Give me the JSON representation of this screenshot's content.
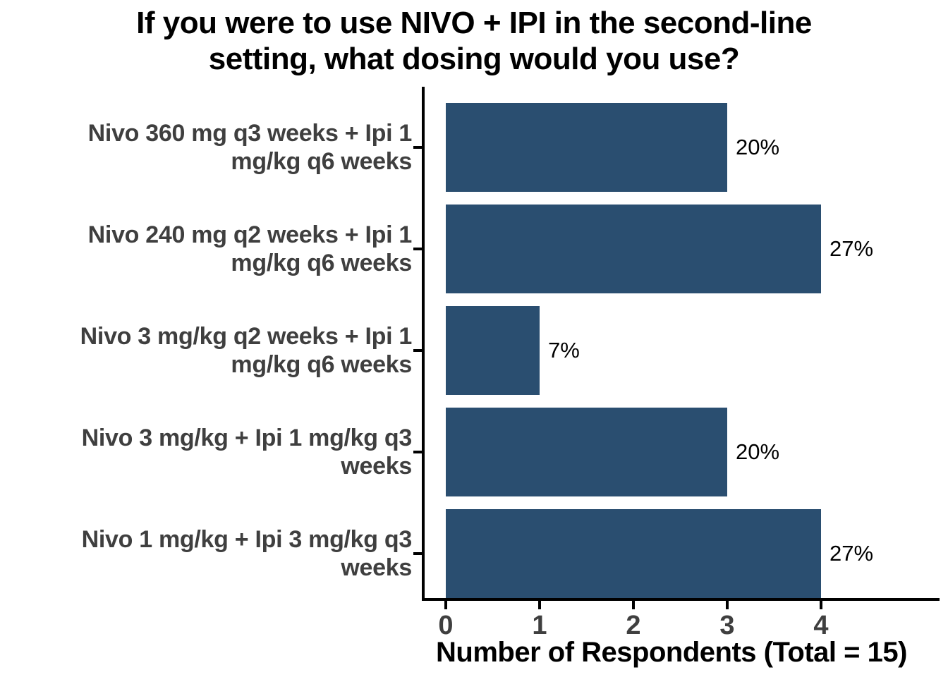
{
  "title": {
    "line1": "If you were to use NIVO + IPI in the second-line",
    "line2": "setting, what dosing would you use?",
    "full": "If you were to use NIVO + IPI in the second-line setting, what dosing would you use?"
  },
  "colors": {
    "bar_fill": "#2A4E70",
    "axis_line": "#000000",
    "axis_text_gray": "#3F3F3F",
    "title_black": "#000000",
    "background": "#FFFFFF"
  },
  "rows": [
    {
      "label_line1": "Nivo 360 mg q3 weeks + Ipi 1",
      "label_line2": "mg/kg q6 weeks",
      "value": 3,
      "pct": "20%"
    },
    {
      "label_line1": "Nivo 240 mg q2 weeks + Ipi 1",
      "label_line2": "mg/kg q6 weeks",
      "value": 4,
      "pct": "27%"
    },
    {
      "label_line1": "Nivo 3 mg/kg q2 weeks + Ipi 1",
      "label_line2": "mg/kg q6 weeks",
      "value": 1,
      "pct": "7%"
    },
    {
      "label_line1": "Nivo 3 mg/kg + Ipi 1 mg/kg q3",
      "label_line2": "weeks",
      "value": 3,
      "pct": "20%"
    },
    {
      "label_line1": "Nivo 1 mg/kg + Ipi 3 mg/kg q3",
      "label_line2": "weeks",
      "value": 4,
      "pct": "27%"
    }
  ],
  "chart_data": {
    "type": "bar",
    "orientation": "horizontal",
    "title": "If you were to use NIVO + IPI in the second-line setting, what dosing would you use?",
    "categories": [
      "Nivo 360 mg q3 weeks + Ipi 1 mg/kg q6 weeks",
      "Nivo 240 mg q2 weeks + Ipi 1 mg/kg q6 weeks",
      "Nivo 3 mg/kg q2 weeks + Ipi 1 mg/kg q6 weeks",
      "Nivo 3 mg/kg + Ipi 1 mg/kg q3 weeks",
      "Nivo 1 mg/kg + Ipi 3 mg/kg q3 weeks"
    ],
    "values": [
      3,
      4,
      1,
      3,
      4
    ],
    "value_labels": [
      "20%",
      "27%",
      "7%",
      "20%",
      "27%"
    ],
    "total_respondents": 15,
    "xlabel": "Number of Respondents (Total = 15)",
    "ylabel": "",
    "x_ticks": [
      0,
      1,
      2,
      3,
      4
    ],
    "x_tick_labels": [
      "0",
      "1",
      "2",
      "3",
      "4"
    ],
    "xlim": [
      0,
      5.3
    ],
    "grid": "off",
    "legend": "none",
    "bar_color": "#2A4E70"
  }
}
